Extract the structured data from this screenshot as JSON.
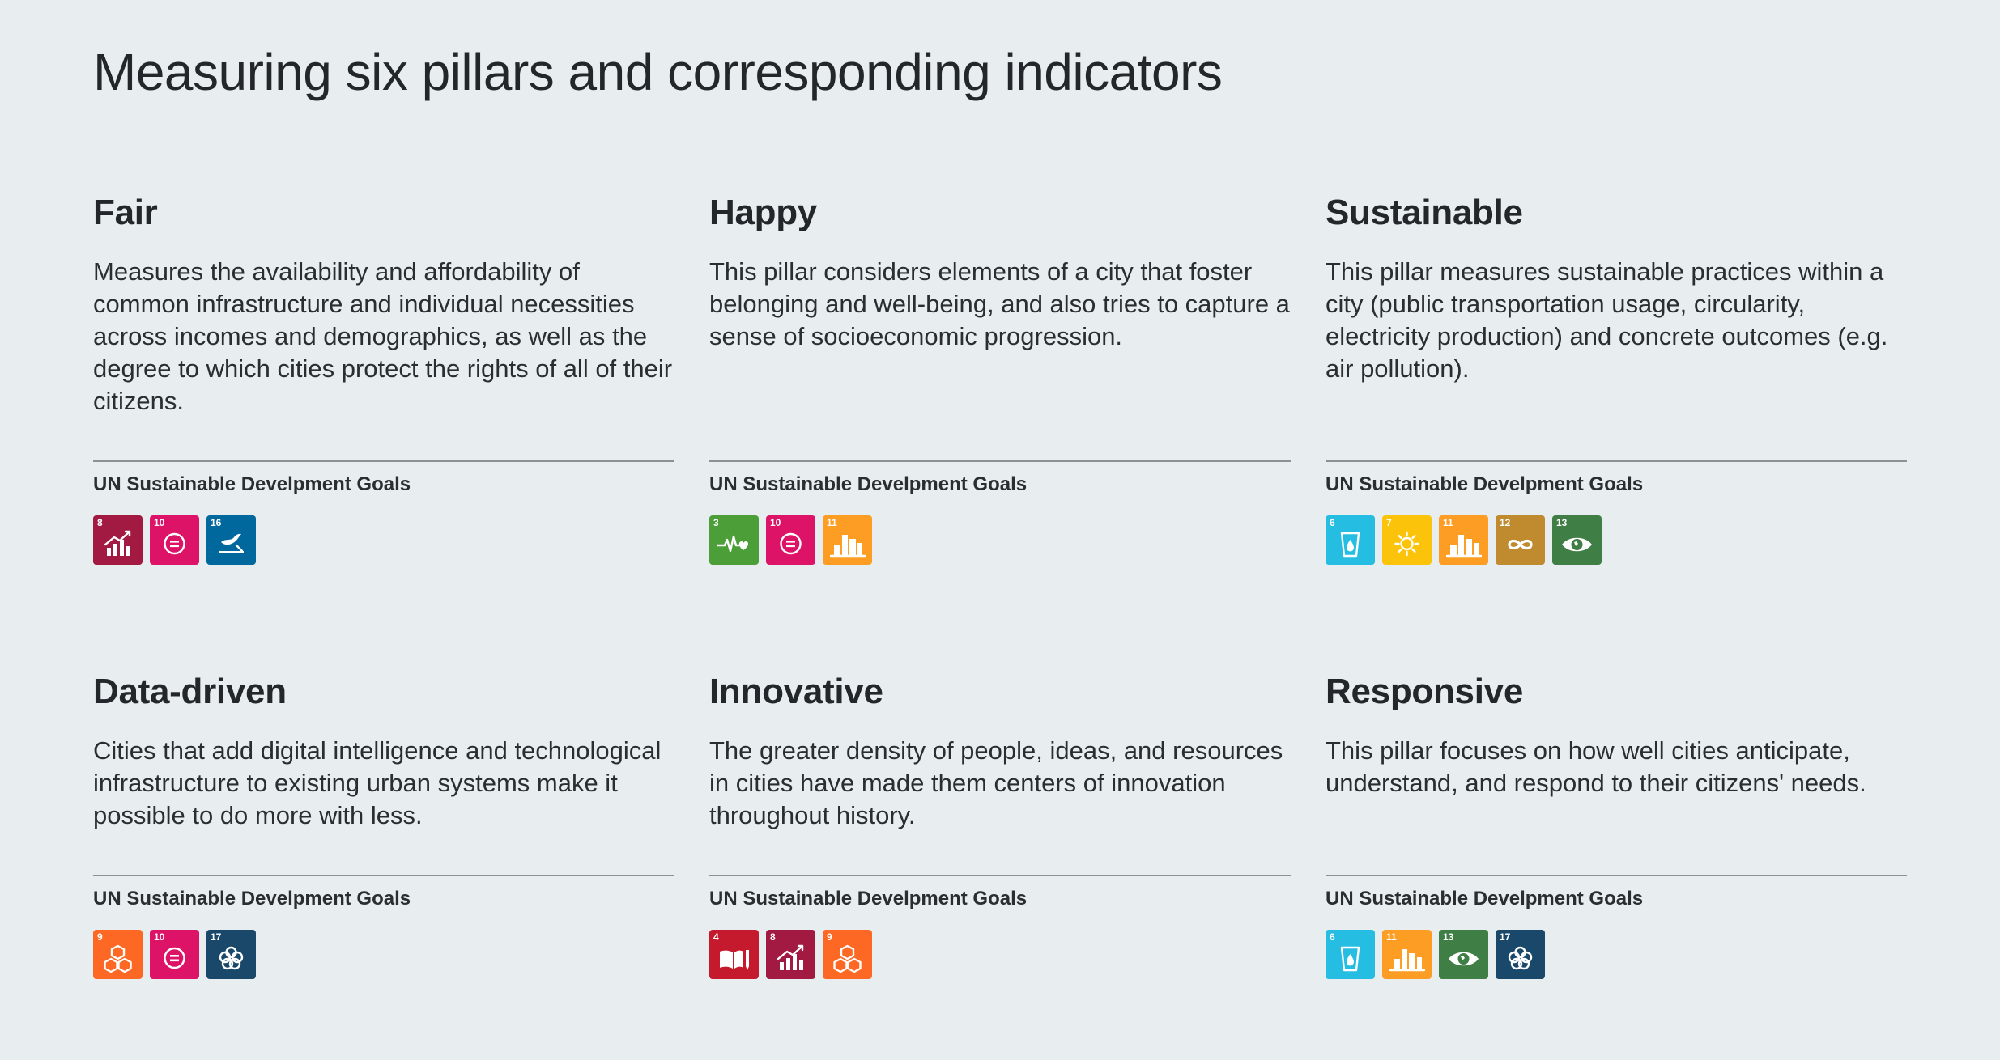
{
  "title": "Measuring six pillars and corresponding indicators",
  "sdg_label": "UN Sustainable Develpment Goals",
  "pillars": [
    {
      "name": "Fair",
      "description": "Measures the availability and affordability of common infrastructure and individual necessities across incomes and demographics, as well as the degree to which cities protect the rights of all of their citizens.",
      "goals": [
        {
          "num": "8",
          "color": "#a21942",
          "icon": "growth-chart-icon"
        },
        {
          "num": "10",
          "color": "#dd1367",
          "icon": "equality-icon"
        },
        {
          "num": "16",
          "color": "#00689d",
          "icon": "dove-gavel-icon"
        }
      ]
    },
    {
      "name": "Happy",
      "description": "This pillar considers elements of a city that foster belonging and well-being, and also tries to capture a sense of socioeconomic progression.",
      "goals": [
        {
          "num": "3",
          "color": "#4c9f38",
          "icon": "heartbeat-icon"
        },
        {
          "num": "10",
          "color": "#dd1367",
          "icon": "equality-icon"
        },
        {
          "num": "11",
          "color": "#fd9d24",
          "icon": "city-buildings-icon"
        }
      ]
    },
    {
      "name": "Sustainable",
      "description": "This pillar measures sustainable practices within a city (public transportation usage, circularity, electricity production) and concrete outcomes (e.g. air pollution).",
      "goals": [
        {
          "num": "6",
          "color": "#26bde2",
          "icon": "water-glass-icon"
        },
        {
          "num": "7",
          "color": "#fcc30b",
          "icon": "sun-power-icon"
        },
        {
          "num": "11",
          "color": "#fd9d24",
          "icon": "city-buildings-icon"
        },
        {
          "num": "12",
          "color": "#bf8b2e",
          "icon": "infinity-icon"
        },
        {
          "num": "13",
          "color": "#3f7e44",
          "icon": "eye-earth-icon"
        }
      ]
    },
    {
      "name": "Data-driven",
      "description": "Cities that add digital intelligence and technological infrastructure to existing urban systems make it possible to do more with less.",
      "goals": [
        {
          "num": "9",
          "color": "#fd6925",
          "icon": "cubes-icon"
        },
        {
          "num": "10",
          "color": "#dd1367",
          "icon": "equality-icon"
        },
        {
          "num": "17",
          "color": "#19486a",
          "icon": "partnership-rings-icon"
        }
      ]
    },
    {
      "name": "Innovative",
      "description": "The greater density of people, ideas, and resources in cities have made them centers of innovation throughout history.",
      "goals": [
        {
          "num": "4",
          "color": "#c5192d",
          "icon": "book-pencil-icon"
        },
        {
          "num": "8",
          "color": "#a21942",
          "icon": "growth-chart-icon"
        },
        {
          "num": "9",
          "color": "#fd6925",
          "icon": "cubes-icon"
        }
      ]
    },
    {
      "name": "Responsive",
      "description": "This pillar focuses on how well cities anticipate, understand, and respond to their citizens' needs.",
      "goals": [
        {
          "num": "6",
          "color": "#26bde2",
          "icon": "water-glass-icon"
        },
        {
          "num": "11",
          "color": "#fd9d24",
          "icon": "city-buildings-icon"
        },
        {
          "num": "13",
          "color": "#3f7e44",
          "icon": "eye-earth-icon"
        },
        {
          "num": "17",
          "color": "#19486a",
          "icon": "partnership-rings-icon"
        }
      ]
    }
  ]
}
